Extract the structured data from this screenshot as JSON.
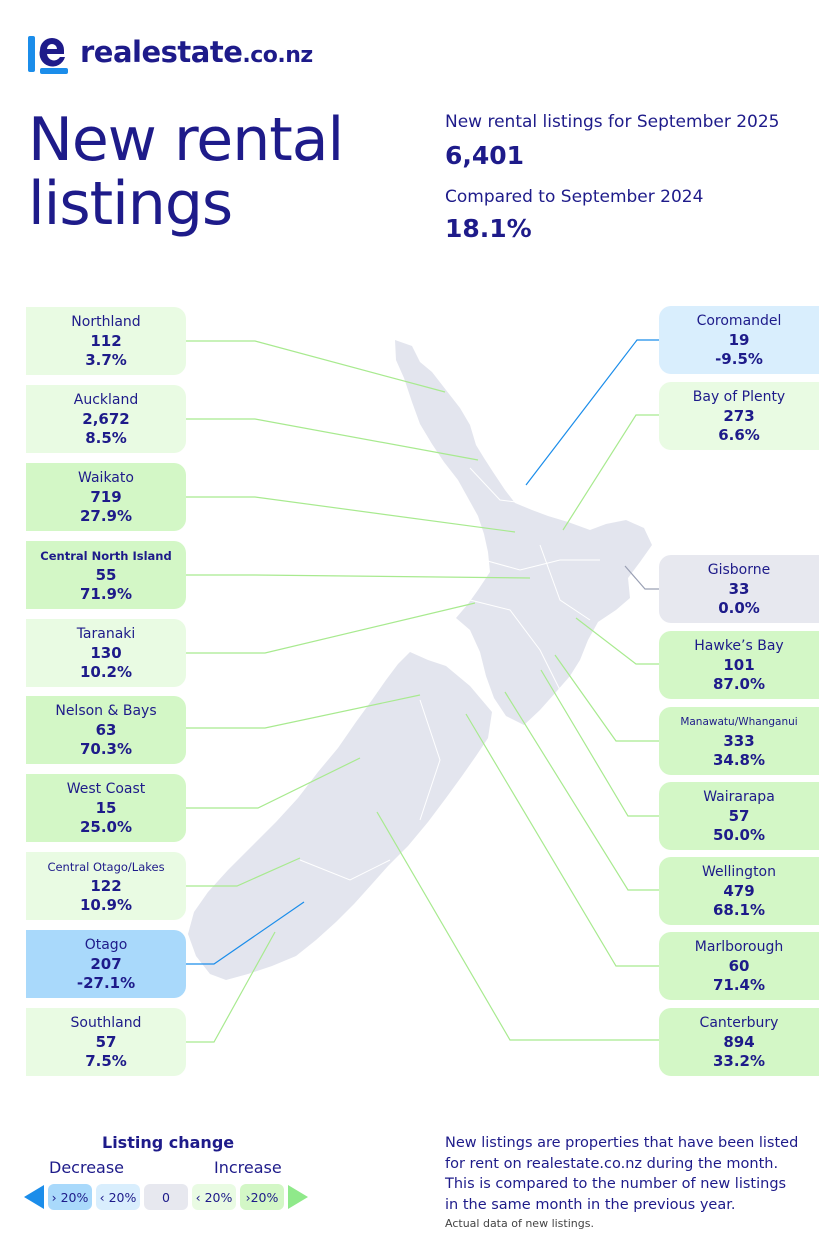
{
  "brand": {
    "name": "realestate",
    "tld": ".co.nz"
  },
  "page_title": {
    "line1": "New rental",
    "line2": "listings"
  },
  "stats": {
    "listings_label": "New rental listings for September 2025",
    "listings_value": "6,401",
    "compare_label": "Compared to September 2024",
    "compare_value": "18.1%"
  },
  "regions_left": [
    {
      "name": "Northland",
      "count": "112",
      "change": "3.7%",
      "level": "inc20"
    },
    {
      "name": "Auckland",
      "count": "2,672",
      "change": "8.5%",
      "level": "inc20"
    },
    {
      "name": "Waikato",
      "count": "719",
      "change": "27.9%",
      "level": "inc20plus"
    },
    {
      "name": "Central North Island",
      "count": "55",
      "change": "71.9%",
      "level": "inc20plus"
    },
    {
      "name": "Taranaki",
      "count": "130",
      "change": "10.2%",
      "level": "inc20"
    },
    {
      "name": "Nelson & Bays",
      "count": "63",
      "change": "70.3%",
      "level": "inc20plus"
    },
    {
      "name": "West Coast",
      "count": "15",
      "change": "25.0%",
      "level": "inc20plus"
    },
    {
      "name": "Central Otago/Lakes",
      "count": "122",
      "change": "10.9%",
      "level": "inc20"
    },
    {
      "name": "Otago",
      "count": "207",
      "change": "-27.1%",
      "level": "dec20plus"
    },
    {
      "name": "Southland",
      "count": "57",
      "change": "7.5%",
      "level": "inc20"
    }
  ],
  "regions_right": [
    {
      "name": "Coromandel",
      "count": "19",
      "change": "-9.5%",
      "level": "dec20"
    },
    {
      "name": "Bay of Plenty",
      "count": "273",
      "change": "6.6%",
      "level": "inc20"
    },
    {
      "name": "Gisborne",
      "count": "33",
      "change": "0.0%",
      "level": "zero"
    },
    {
      "name": "Hawke’s Bay",
      "count": "101",
      "change": "87.0%",
      "level": "inc20plus"
    },
    {
      "name": "Manawatu/Whanganui",
      "count": "333",
      "change": "34.8%",
      "level": "inc20plus"
    },
    {
      "name": "Wairarapa",
      "count": "57",
      "change": "50.0%",
      "level": "inc20plus"
    },
    {
      "name": "Wellington",
      "count": "479",
      "change": "68.1%",
      "level": "inc20plus"
    },
    {
      "name": "Marlborough",
      "count": "60",
      "change": "71.4%",
      "level": "inc20plus"
    },
    {
      "name": "Canterbury",
      "count": "894",
      "change": "33.2%",
      "level": "inc20plus"
    }
  ],
  "legend": {
    "title": "Listing change",
    "decrease": "Decrease",
    "increase": "Increase",
    "chips": [
      "› 20%",
      "‹ 20%",
      "0",
      "‹ 20%",
      "›20%"
    ]
  },
  "note": "New listings are properties that have been listed for rent on realestate.co.nz during the month. This is compared to the number of new listings in the same month in the previous year.",
  "footnote": "Actual data of new listings.",
  "colors": {
    "brand_navy": "#1e1b8a",
    "brand_blue": "#1b8dea",
    "increase_over_20": "#d3f7c6",
    "increase_under_20": "#e9fbe3",
    "no_change": "#e7e8ef",
    "decrease_under_20": "#d9eefd",
    "decrease_over_20": "#a9d9fb"
  }
}
